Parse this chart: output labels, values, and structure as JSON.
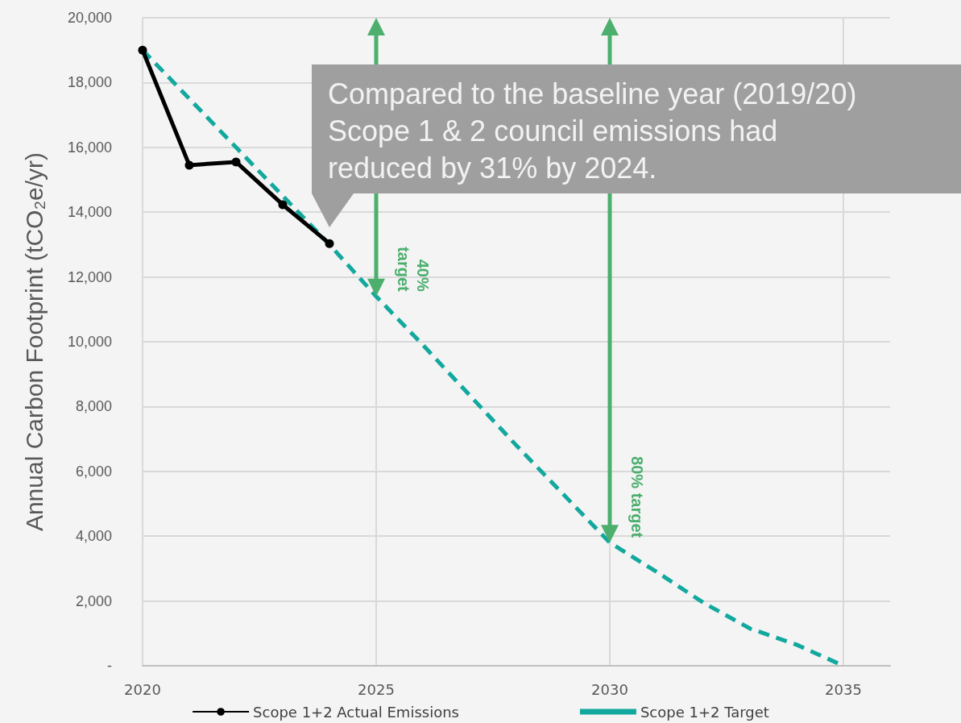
{
  "chart_data": {
    "type": "line",
    "ylabel": "Annual Carbon Footprint (tCO₂e/yr)",
    "xlim": [
      2020,
      2036
    ],
    "xticks": [
      2020,
      2025,
      2030,
      2035
    ],
    "ylim": [
      0,
      20000
    ],
    "yticks": [
      {
        "value": 0,
        "label": "-"
      },
      {
        "value": 2000,
        "label": "2,000"
      },
      {
        "value": 4000,
        "label": "4,000"
      },
      {
        "value": 6000,
        "label": "6,000"
      },
      {
        "value": 8000,
        "label": "8,000"
      },
      {
        "value": 10000,
        "label": "10,000"
      },
      {
        "value": 12000,
        "label": "12,000"
      },
      {
        "value": 14000,
        "label": "14,000"
      },
      {
        "value": 16000,
        "label": "16,000"
      },
      {
        "value": 18000,
        "label": "18,000"
      },
      {
        "value": 20000,
        "label": "20,000"
      }
    ],
    "series": [
      {
        "name": "Scope 1+2 Actual Emissions",
        "color": "#000000",
        "marker": "circle",
        "line_style": "solid",
        "x": [
          2020,
          2021,
          2022,
          2023,
          2024
        ],
        "values": [
          19000,
          15450,
          15550,
          14230,
          13030
        ]
      },
      {
        "name": "Scope 1+2 Target",
        "color": "#13a89e",
        "marker": "none",
        "line_style": "dashed",
        "x": [
          2020,
          2021,
          2022,
          2023,
          2024,
          2025,
          2026,
          2027,
          2028,
          2029,
          2030,
          2031,
          2032,
          2033,
          2034,
          2035
        ],
        "values": [
          19000,
          17500,
          16000,
          14500,
          13000,
          11400,
          9900,
          8350,
          6800,
          5300,
          3800,
          2900,
          1950,
          1150,
          650,
          0
        ]
      }
    ],
    "annotations": [
      {
        "text": "Compared to the baseline year (2019/20)\nScope 1 & 2 council emissions had\nreduced by 31% by 2024.",
        "x": 2024,
        "y": 13030
      },
      {
        "text": "40%\ntarget",
        "x": 2025,
        "y": 11400
      },
      {
        "text": "80% target",
        "x": 2030,
        "y": 3800
      }
    ],
    "grid": true,
    "legend": "bottom"
  }
}
